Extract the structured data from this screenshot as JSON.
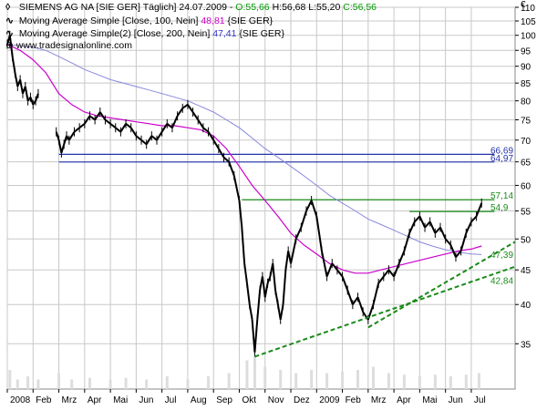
{
  "header": {
    "instrument": "SIEMENS AG NA [SIE GER] Täglich] 24.07.2009",
    "open_label": "O:55,66",
    "high_label": "H:56,68",
    "low_label": "L:55,20",
    "close_label": "C:56,56",
    "currency": "€",
    "watermark": "www.tradesignalonline.com"
  },
  "legend": [
    {
      "label": "Moving Average Simple [Close, 100, Nein]",
      "value": "48,81",
      "suffix": "{SIE GER}",
      "color": "#cc00cc"
    },
    {
      "label": "Moving Average Simple(2) [Close, 200, Nein]",
      "value": "47,41",
      "suffix": "{SIE GER}",
      "color": "#7777dd"
    }
  ],
  "colors": {
    "grid": "#c8c8c8",
    "ma100": "#cc00cc",
    "ma200": "#8888dd",
    "support": "#1a8a1a",
    "resistance_blue": "#2233aa",
    "resistance_green": "#1a8a1a",
    "candle": "#000000",
    "volume": "#dddddd"
  },
  "chart_data": {
    "type": "line",
    "scale": "log",
    "ylim": [
      30,
      110
    ],
    "y_ticks": [
      35,
      40,
      45,
      50,
      55,
      60,
      65,
      70,
      75,
      80,
      85,
      90,
      95,
      100,
      105,
      110
    ],
    "x_tick_labels": [
      "2008",
      "Feb",
      "Mrz",
      "Apr",
      "Mai",
      "Jun",
      "Jul",
      "Aug",
      "Sep",
      "Okt",
      "Nov",
      "Dez",
      "2009",
      "Feb",
      "Mrz",
      "Apr",
      "Mai",
      "Jun",
      "Jul"
    ],
    "x_tick_index": [
      0,
      1,
      2,
      3,
      4,
      5,
      6,
      7,
      8,
      9,
      10,
      11,
      12,
      13,
      14,
      15,
      16,
      17,
      18
    ],
    "month_count": 19.7,
    "price_series": {
      "name": "SIEMENS AG NA",
      "points": [
        [
          0.0,
          97
        ],
        [
          0.1,
          100
        ],
        [
          0.2,
          93
        ],
        [
          0.3,
          88
        ],
        [
          0.4,
          84
        ],
        [
          0.5,
          86
        ],
        [
          0.6,
          82
        ],
        [
          0.7,
          84
        ],
        [
          0.8,
          80
        ],
        [
          0.9,
          81
        ],
        [
          1.0,
          79
        ],
        [
          1.1,
          80
        ],
        [
          1.2,
          82
        ],
        [
          1.9,
          72
        ],
        [
          2.0,
          70
        ],
        [
          2.1,
          67
        ],
        [
          2.2,
          69
        ],
        [
          2.3,
          71
        ],
        [
          2.4,
          70
        ],
        [
          2.6,
          72
        ],
        [
          2.8,
          73
        ],
        [
          3.0,
          74
        ],
        [
          3.2,
          76
        ],
        [
          3.4,
          75
        ],
        [
          3.6,
          77
        ],
        [
          3.8,
          75
        ],
        [
          4.0,
          74
        ],
        [
          4.2,
          73
        ],
        [
          4.4,
          72
        ],
        [
          4.6,
          74
        ],
        [
          4.8,
          73
        ],
        [
          5.0,
          71
        ],
        [
          5.2,
          70
        ],
        [
          5.4,
          69
        ],
        [
          5.6,
          71
        ],
        [
          5.8,
          70
        ],
        [
          6.0,
          72
        ],
        [
          6.2,
          74
        ],
        [
          6.4,
          73
        ],
        [
          6.6,
          76
        ],
        [
          6.8,
          78
        ],
        [
          7.0,
          79
        ],
        [
          7.2,
          77
        ],
        [
          7.4,
          75
        ],
        [
          7.6,
          73
        ],
        [
          7.8,
          72
        ],
        [
          8.0,
          70
        ],
        [
          8.2,
          68
        ],
        [
          8.4,
          66
        ],
        [
          8.6,
          65
        ],
        [
          8.8,
          62
        ],
        [
          9.0,
          57
        ],
        [
          9.1,
          52
        ],
        [
          9.2,
          46
        ],
        [
          9.3,
          43
        ],
        [
          9.4,
          40
        ],
        [
          9.5,
          38
        ],
        [
          9.6,
          34
        ],
        [
          9.7,
          38
        ],
        [
          9.8,
          42
        ],
        [
          9.9,
          44
        ],
        [
          10.0,
          41
        ],
        [
          10.1,
          43
        ],
        [
          10.2,
          44
        ],
        [
          10.3,
          46
        ],
        [
          10.4,
          42
        ],
        [
          10.5,
          40
        ],
        [
          10.6,
          38
        ],
        [
          10.7,
          40
        ],
        [
          10.8,
          45
        ],
        [
          10.9,
          48
        ],
        [
          11.0,
          46
        ],
        [
          11.2,
          50
        ],
        [
          11.4,
          52
        ],
        [
          11.6,
          55
        ],
        [
          11.8,
          57
        ],
        [
          12.0,
          54
        ],
        [
          12.2,
          48
        ],
        [
          12.4,
          44
        ],
        [
          12.6,
          46
        ],
        [
          12.8,
          45
        ],
        [
          13.0,
          44
        ],
        [
          13.2,
          42
        ],
        [
          13.4,
          40
        ],
        [
          13.6,
          41
        ],
        [
          13.8,
          39
        ],
        [
          14.0,
          38
        ],
        [
          14.2,
          40
        ],
        [
          14.4,
          43
        ],
        [
          14.6,
          44
        ],
        [
          14.8,
          45
        ],
        [
          15.0,
          44
        ],
        [
          15.2,
          46
        ],
        [
          15.4,
          48
        ],
        [
          15.6,
          51
        ],
        [
          15.8,
          53
        ],
        [
          16.0,
          54
        ],
        [
          16.2,
          52
        ],
        [
          16.4,
          53
        ],
        [
          16.6,
          51
        ],
        [
          16.8,
          52
        ],
        [
          17.0,
          50
        ],
        [
          17.2,
          49
        ],
        [
          17.4,
          47
        ],
        [
          17.6,
          48
        ],
        [
          17.8,
          51
        ],
        [
          18.0,
          53
        ],
        [
          18.2,
          54
        ],
        [
          18.4,
          56.5
        ]
      ]
    },
    "ma100": {
      "name": "Moving Average Simple [Close, 100, Nein]",
      "points": [
        [
          0.0,
          97
        ],
        [
          0.5,
          95
        ],
        [
          1.0,
          92
        ],
        [
          1.5,
          88
        ],
        [
          2.0,
          82
        ],
        [
          2.5,
          79
        ],
        [
          3.0,
          77
        ],
        [
          3.5,
          76
        ],
        [
          4.0,
          75.5
        ],
        [
          4.5,
          75
        ],
        [
          5.0,
          74.5
        ],
        [
          5.5,
          74
        ],
        [
          6.0,
          73.5
        ],
        [
          6.5,
          73.5
        ],
        [
          7.0,
          73
        ],
        [
          7.5,
          72.5
        ],
        [
          8.0,
          71
        ],
        [
          8.5,
          68
        ],
        [
          9.0,
          64
        ],
        [
          9.5,
          60
        ],
        [
          10.0,
          57
        ],
        [
          10.5,
          54
        ],
        [
          11.0,
          51
        ],
        [
          11.5,
          49
        ],
        [
          12.0,
          47.5
        ],
        [
          12.5,
          46
        ],
        [
          13.0,
          45
        ],
        [
          13.5,
          44.5
        ],
        [
          14.0,
          44.5
        ],
        [
          14.5,
          45
        ],
        [
          15.0,
          45.5
        ],
        [
          15.5,
          46
        ],
        [
          16.0,
          46.5
        ],
        [
          16.5,
          47
        ],
        [
          17.0,
          47.5
        ],
        [
          17.5,
          48
        ],
        [
          18.0,
          48.3
        ],
        [
          18.4,
          48.81
        ]
      ]
    },
    "ma200": {
      "name": "Moving Average Simple(2) [Close, 200, Nein]",
      "points": [
        [
          0.0,
          97
        ],
        [
          0.5,
          96.5
        ],
        [
          1.0,
          96
        ],
        [
          1.5,
          95
        ],
        [
          2.0,
          93
        ],
        [
          2.5,
          91
        ],
        [
          3.0,
          89
        ],
        [
          3.5,
          87.5
        ],
        [
          4.0,
          86
        ],
        [
          4.5,
          85
        ],
        [
          5.0,
          84
        ],
        [
          5.5,
          83
        ],
        [
          6.0,
          82
        ],
        [
          6.5,
          81
        ],
        [
          7.0,
          80
        ],
        [
          7.5,
          78.5
        ],
        [
          8.0,
          77
        ],
        [
          8.5,
          75
        ],
        [
          9.0,
          73
        ],
        [
          9.5,
          70.5
        ],
        [
          10.0,
          68
        ],
        [
          10.5,
          66
        ],
        [
          11.0,
          64
        ],
        [
          11.5,
          62
        ],
        [
          12.0,
          60
        ],
        [
          12.5,
          58
        ],
        [
          13.0,
          56.5
        ],
        [
          13.5,
          55
        ],
        [
          14.0,
          53.5
        ],
        [
          14.5,
          52.5
        ],
        [
          15.0,
          51.5
        ],
        [
          15.5,
          50.5
        ],
        [
          16.0,
          49.5
        ],
        [
          16.5,
          48.8
        ],
        [
          17.0,
          48.2
        ],
        [
          17.5,
          47.8
        ],
        [
          18.0,
          47.5
        ],
        [
          18.4,
          47.41
        ]
      ]
    },
    "horizontal_levels": [
      {
        "value": 66.69,
        "label": "66,69",
        "from": 2.0,
        "to": 18.9,
        "color": "#2233aa"
      },
      {
        "value": 64.97,
        "label": "64,97",
        "from": 2.0,
        "to": 18.9,
        "color": "#2233aa"
      },
      {
        "value": 57.14,
        "label": "57,14",
        "from": 9.1,
        "to": 18.9,
        "color": "#1a8a1a"
      },
      {
        "value": 54.9,
        "label": "54,9",
        "from": 15.6,
        "to": 18.9,
        "color": "#1a8a1a"
      }
    ],
    "trend_lines": [
      {
        "from": [
          9.6,
          33.5
        ],
        "to": [
          19.7,
          45.5
        ],
        "label": "42,84",
        "color": "#1a8a1a"
      },
      {
        "from": [
          14.0,
          37.0
        ],
        "to": [
          19.7,
          49.5
        ],
        "label": "47,39",
        "color": "#1a8a1a"
      }
    ],
    "volume": [
      [
        0.1,
        0.6
      ],
      [
        0.4,
        0.3
      ],
      [
        0.8,
        0.4
      ],
      [
        1.2,
        0.3
      ],
      [
        2.0,
        0.5
      ],
      [
        2.5,
        0.3
      ],
      [
        3.2,
        0.35
      ],
      [
        4.0,
        0.3
      ],
      [
        4.6,
        0.35
      ],
      [
        5.4,
        0.3
      ],
      [
        6.2,
        0.4
      ],
      [
        7.0,
        0.3
      ],
      [
        7.8,
        0.4
      ],
      [
        8.6,
        0.5
      ],
      [
        9.3,
        0.9
      ],
      [
        9.6,
        1.0
      ],
      [
        10.0,
        0.7
      ],
      [
        10.6,
        0.6
      ],
      [
        11.2,
        0.5
      ],
      [
        11.8,
        0.6
      ],
      [
        12.4,
        0.5
      ],
      [
        13.0,
        0.55
      ],
      [
        13.6,
        0.6
      ],
      [
        14.2,
        0.7
      ],
      [
        14.8,
        0.5
      ],
      [
        15.4,
        0.45
      ],
      [
        16.0,
        0.4
      ],
      [
        16.6,
        0.45
      ],
      [
        17.2,
        0.4
      ],
      [
        17.8,
        0.45
      ],
      [
        18.3,
        0.5
      ]
    ]
  }
}
